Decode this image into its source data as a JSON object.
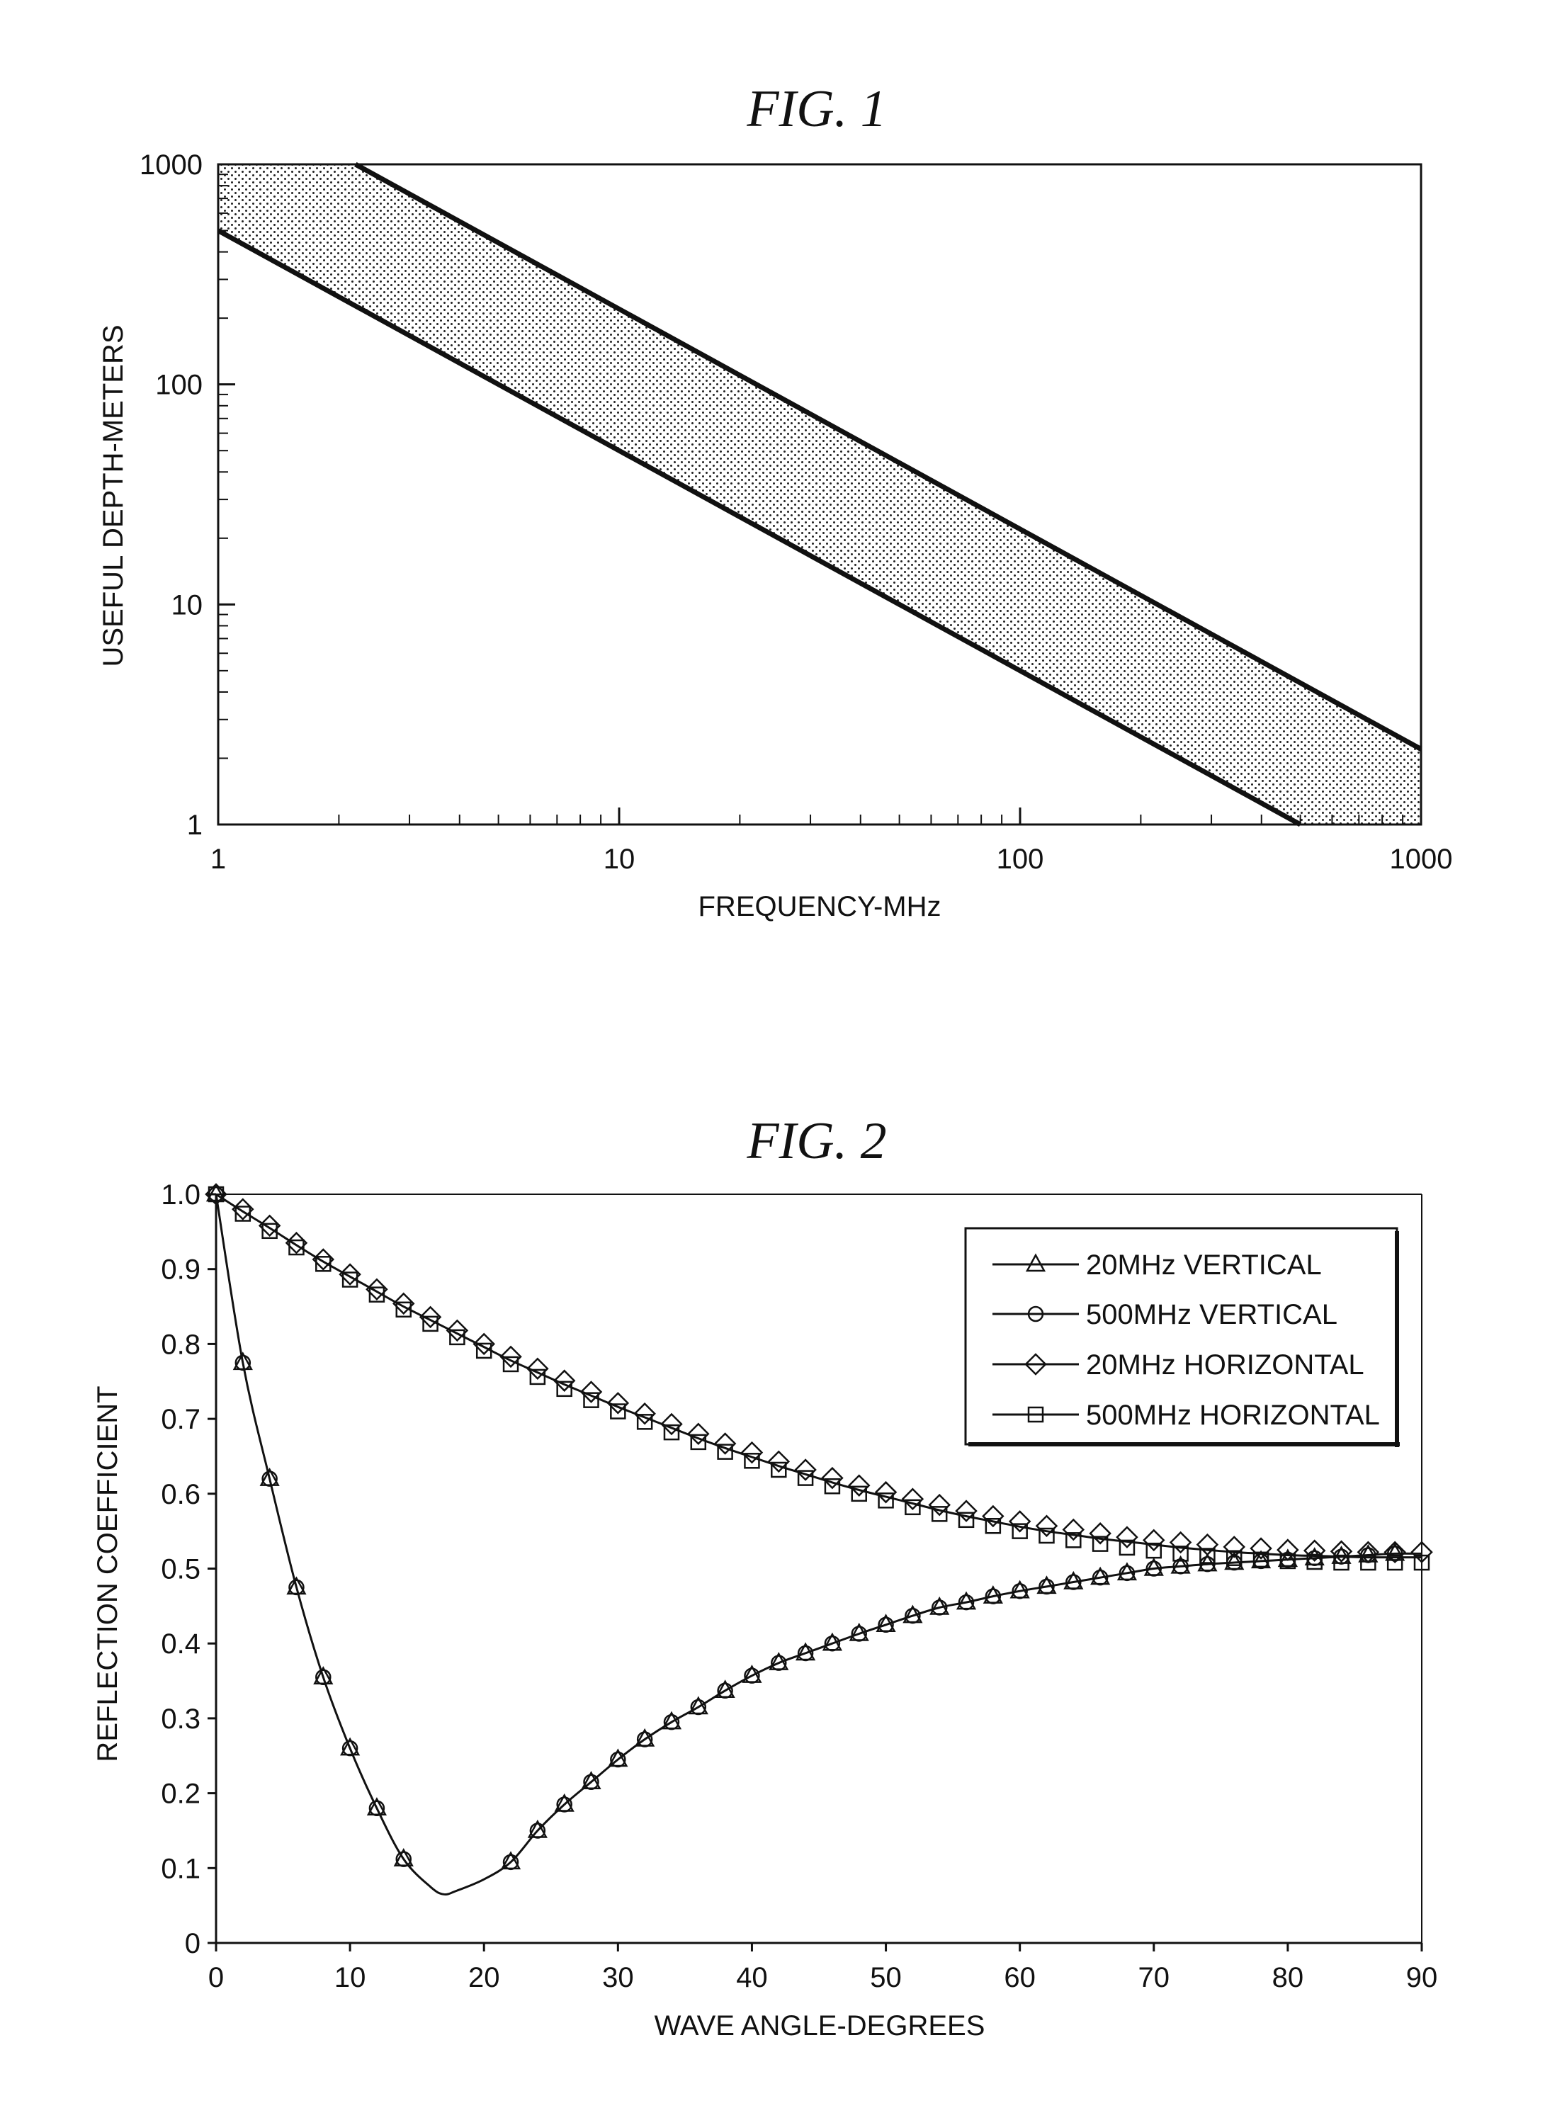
{
  "chart_data": [
    {
      "type": "area",
      "title": "FIG. 1",
      "xlabel": "FREQUENCY-MHz",
      "ylabel": "USEFUL DEPTH-METERS",
      "xscale": "log",
      "yscale": "log",
      "xlim": [
        1,
        1000
      ],
      "ylim": [
        1,
        1000
      ],
      "xticks": [
        "1",
        "10",
        "100",
        "1000"
      ],
      "yticks": [
        "1",
        "10",
        "100",
        "1000"
      ],
      "grid": false,
      "band": {
        "fill": "dotted",
        "upper_line": {
          "x": [
            2.2,
            1000
          ],
          "y": [
            1000,
            2.2
          ]
        },
        "lower_line": {
          "x": [
            1,
            500
          ],
          "y": [
            500,
            1
          ]
        }
      }
    },
    {
      "type": "line",
      "title": "FIG. 2",
      "xlabel": "WAVE ANGLE-DEGREES",
      "ylabel": "REFLECTION COEFFICIENT",
      "xlim": [
        0,
        90
      ],
      "ylim": [
        0,
        1.0
      ],
      "xticks": [
        "0",
        "10",
        "20",
        "30",
        "40",
        "50",
        "60",
        "70",
        "80",
        "90"
      ],
      "yticks": [
        "0",
        "0.1",
        "0.2",
        "0.3",
        "0.4",
        "0.5",
        "0.6",
        "0.7",
        "0.8",
        "0.9",
        "1.0"
      ],
      "grid": false,
      "legend_position": "top-right",
      "vertical_curve": {
        "x": [
          0,
          2,
          4,
          6,
          8,
          10,
          12,
          14,
          16,
          17,
          18,
          20,
          22,
          24,
          26,
          28,
          30,
          32,
          34,
          36,
          38,
          40,
          42,
          44,
          46,
          48,
          50,
          52,
          54,
          56,
          58,
          60,
          62,
          64,
          66,
          68,
          70,
          72,
          74,
          76,
          78,
          80,
          82,
          84,
          86,
          88,
          90
        ],
        "y": [
          1.0,
          0.775,
          0.62,
          0.475,
          0.355,
          0.26,
          0.18,
          0.112,
          0.075,
          0.065,
          0.07,
          0.085,
          0.108,
          0.15,
          0.185,
          0.215,
          0.245,
          0.272,
          0.295,
          0.315,
          0.337,
          0.357,
          0.374,
          0.387,
          0.4,
          0.413,
          0.425,
          0.437,
          0.448,
          0.455,
          0.463,
          0.47,
          0.476,
          0.482,
          0.488,
          0.494,
          0.5,
          0.503,
          0.506,
          0.508,
          0.51,
          0.512,
          0.514,
          0.516,
          0.518,
          0.52,
          0.52
        ]
      },
      "horizontal_curve": {
        "x": [
          0,
          2,
          4,
          6,
          8,
          10,
          12,
          14,
          16,
          18,
          20,
          22,
          24,
          26,
          28,
          30,
          32,
          34,
          36,
          38,
          40,
          42,
          44,
          46,
          48,
          50,
          52,
          54,
          56,
          58,
          60,
          62,
          64,
          66,
          68,
          70,
          72,
          74,
          76,
          78,
          80,
          82,
          84,
          86,
          88,
          90
        ],
        "y": [
          1.0,
          0.977,
          0.955,
          0.932,
          0.91,
          0.89,
          0.87,
          0.85,
          0.832,
          0.814,
          0.796,
          0.778,
          0.762,
          0.746,
          0.731,
          0.716,
          0.702,
          0.688,
          0.674,
          0.661,
          0.649,
          0.637,
          0.626,
          0.615,
          0.605,
          0.596,
          0.587,
          0.578,
          0.57,
          0.563,
          0.556,
          0.55,
          0.545,
          0.54,
          0.536,
          0.532,
          0.528,
          0.525,
          0.522,
          0.52,
          0.518,
          0.517,
          0.516,
          0.515,
          0.515,
          0.515
        ]
      },
      "series": [
        {
          "name": "20MHz VERTICAL",
          "marker": "triangle",
          "x": [
            0,
            2,
            4,
            6,
            8,
            10,
            12,
            14,
            22,
            24,
            26,
            28,
            30,
            32,
            34,
            36,
            38,
            40,
            42,
            44,
            46,
            48,
            50,
            52,
            54,
            56,
            58,
            60,
            62,
            64,
            66,
            68,
            70,
            72,
            74,
            76,
            78,
            80,
            82,
            84,
            86,
            88
          ],
          "y": [
            1.0,
            0.775,
            0.62,
            0.475,
            0.355,
            0.26,
            0.18,
            0.112,
            0.108,
            0.15,
            0.185,
            0.215,
            0.245,
            0.272,
            0.295,
            0.315,
            0.337,
            0.357,
            0.374,
            0.387,
            0.4,
            0.413,
            0.425,
            0.437,
            0.448,
            0.455,
            0.463,
            0.47,
            0.476,
            0.482,
            0.488,
            0.494,
            0.5,
            0.503,
            0.506,
            0.508,
            0.51,
            0.512,
            0.514,
            0.516,
            0.518,
            0.52
          ]
        },
        {
          "name": "500MHz VERTICAL",
          "marker": "circle",
          "x": [
            0,
            2,
            4,
            6,
            8,
            10,
            12,
            14,
            22,
            24,
            26,
            28,
            30,
            32,
            34,
            36,
            38,
            40,
            42,
            44,
            46,
            48,
            50,
            52,
            54,
            56,
            58,
            60,
            62,
            64,
            66,
            68,
            70,
            72,
            74,
            76,
            78,
            80,
            82,
            84,
            86,
            88
          ],
          "y": [
            1.0,
            0.775,
            0.62,
            0.475,
            0.355,
            0.26,
            0.18,
            0.112,
            0.108,
            0.15,
            0.185,
            0.215,
            0.245,
            0.272,
            0.295,
            0.315,
            0.337,
            0.357,
            0.374,
            0.387,
            0.4,
            0.413,
            0.425,
            0.437,
            0.448,
            0.455,
            0.463,
            0.47,
            0.476,
            0.482,
            0.488,
            0.494,
            0.5,
            0.503,
            0.506,
            0.508,
            0.51,
            0.512,
            0.514,
            0.516,
            0.518,
            0.52
          ]
        },
        {
          "name": "20MHz HORIZONTAL",
          "marker": "diamond",
          "x": [
            0,
            2,
            4,
            6,
            8,
            10,
            12,
            14,
            16,
            18,
            20,
            22,
            24,
            26,
            28,
            30,
            32,
            34,
            36,
            38,
            40,
            42,
            44,
            46,
            48,
            50,
            52,
            54,
            56,
            58,
            60,
            62,
            64,
            66,
            68,
            70,
            72,
            74,
            76,
            78,
            80,
            82,
            84,
            86,
            88,
            90
          ],
          "y": [
            1.0,
            0.98,
            0.958,
            0.935,
            0.913,
            0.893,
            0.873,
            0.854,
            0.836,
            0.818,
            0.8,
            0.783,
            0.767,
            0.751,
            0.736,
            0.721,
            0.707,
            0.693,
            0.68,
            0.667,
            0.655,
            0.643,
            0.632,
            0.621,
            0.611,
            0.602,
            0.593,
            0.585,
            0.577,
            0.57,
            0.563,
            0.557,
            0.552,
            0.547,
            0.542,
            0.538,
            0.535,
            0.532,
            0.529,
            0.527,
            0.525,
            0.524,
            0.523,
            0.522,
            0.522,
            0.522
          ]
        },
        {
          "name": "500MHz HORIZONTAL",
          "marker": "square",
          "x": [
            0,
            2,
            4,
            6,
            8,
            10,
            12,
            14,
            16,
            18,
            20,
            22,
            24,
            26,
            28,
            30,
            32,
            34,
            36,
            38,
            40,
            42,
            44,
            46,
            48,
            50,
            52,
            54,
            56,
            58,
            60,
            62,
            64,
            66,
            68,
            70,
            72,
            74,
            76,
            78,
            80,
            82,
            84,
            86,
            88,
            90
          ],
          "y": [
            1.0,
            0.974,
            0.951,
            0.929,
            0.907,
            0.886,
            0.866,
            0.846,
            0.827,
            0.809,
            0.791,
            0.773,
            0.756,
            0.74,
            0.725,
            0.71,
            0.696,
            0.682,
            0.669,
            0.656,
            0.644,
            0.632,
            0.621,
            0.61,
            0.6,
            0.591,
            0.582,
            0.573,
            0.565,
            0.557,
            0.55,
            0.544,
            0.538,
            0.533,
            0.528,
            0.524,
            0.52,
            0.517,
            0.514,
            0.512,
            0.51,
            0.509,
            0.508,
            0.508,
            0.508,
            0.508
          ]
        }
      ]
    }
  ]
}
